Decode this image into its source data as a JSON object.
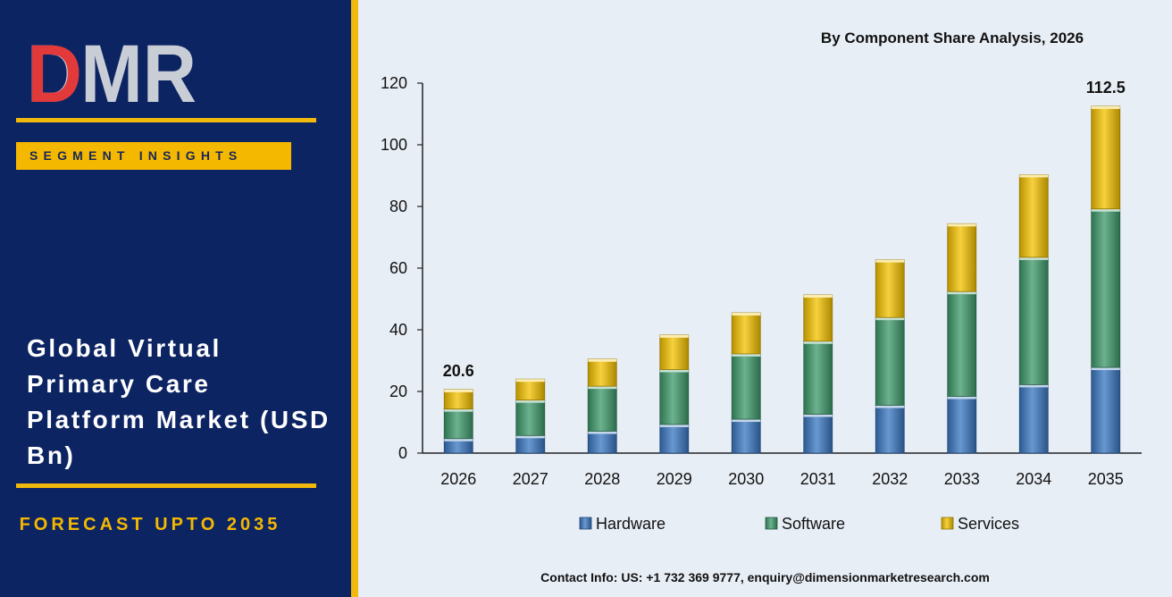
{
  "panel": {
    "logo_text": "DMR",
    "badge": "SEGMENT INSIGHTS",
    "title": "Global Virtual Primary Care Platform Market (USD Bn)",
    "forecast": "FORECAST UPTO 2035"
  },
  "contact": "Contact Info: US: +1 732 369 9777, enquiry@dimensionmarketresearch.com",
  "colors": {
    "navy": "#0d2463",
    "gold": "#f5b800",
    "hardware": "#3a78c2",
    "software": "#3f9a6c",
    "services": "#f5c200"
  },
  "chart_data": {
    "type": "bar",
    "stacked": true,
    "title": "By Component  Share Analysis, 2026",
    "categories": [
      "2026",
      "2027",
      "2028",
      "2029",
      "2030",
      "2031",
      "2032",
      "2033",
      "2034",
      "2035"
    ],
    "series": [
      {
        "name": "Hardware",
        "values": [
          4.7,
          5.7,
          7.1,
          9.3,
          11.0,
          12.6,
          15.5,
          18.4,
          22.2,
          27.8
        ]
      },
      {
        "name": "Software",
        "values": [
          9.6,
          11.5,
          14.6,
          17.8,
          21.2,
          23.7,
          28.5,
          34.0,
          41.3,
          51.4
        ]
      },
      {
        "name": "Services",
        "values": [
          6.3,
          6.8,
          8.8,
          11.2,
          13.3,
          15.0,
          18.7,
          22.0,
          26.8,
          33.3
        ]
      }
    ],
    "totals_labeled": {
      "2026": "20.6",
      "2035": "112.5"
    },
    "ylim": [
      0,
      120
    ],
    "yticks": [
      0,
      20,
      40,
      60,
      80,
      100,
      120
    ],
    "legend_position": "bottom",
    "grid": false
  }
}
